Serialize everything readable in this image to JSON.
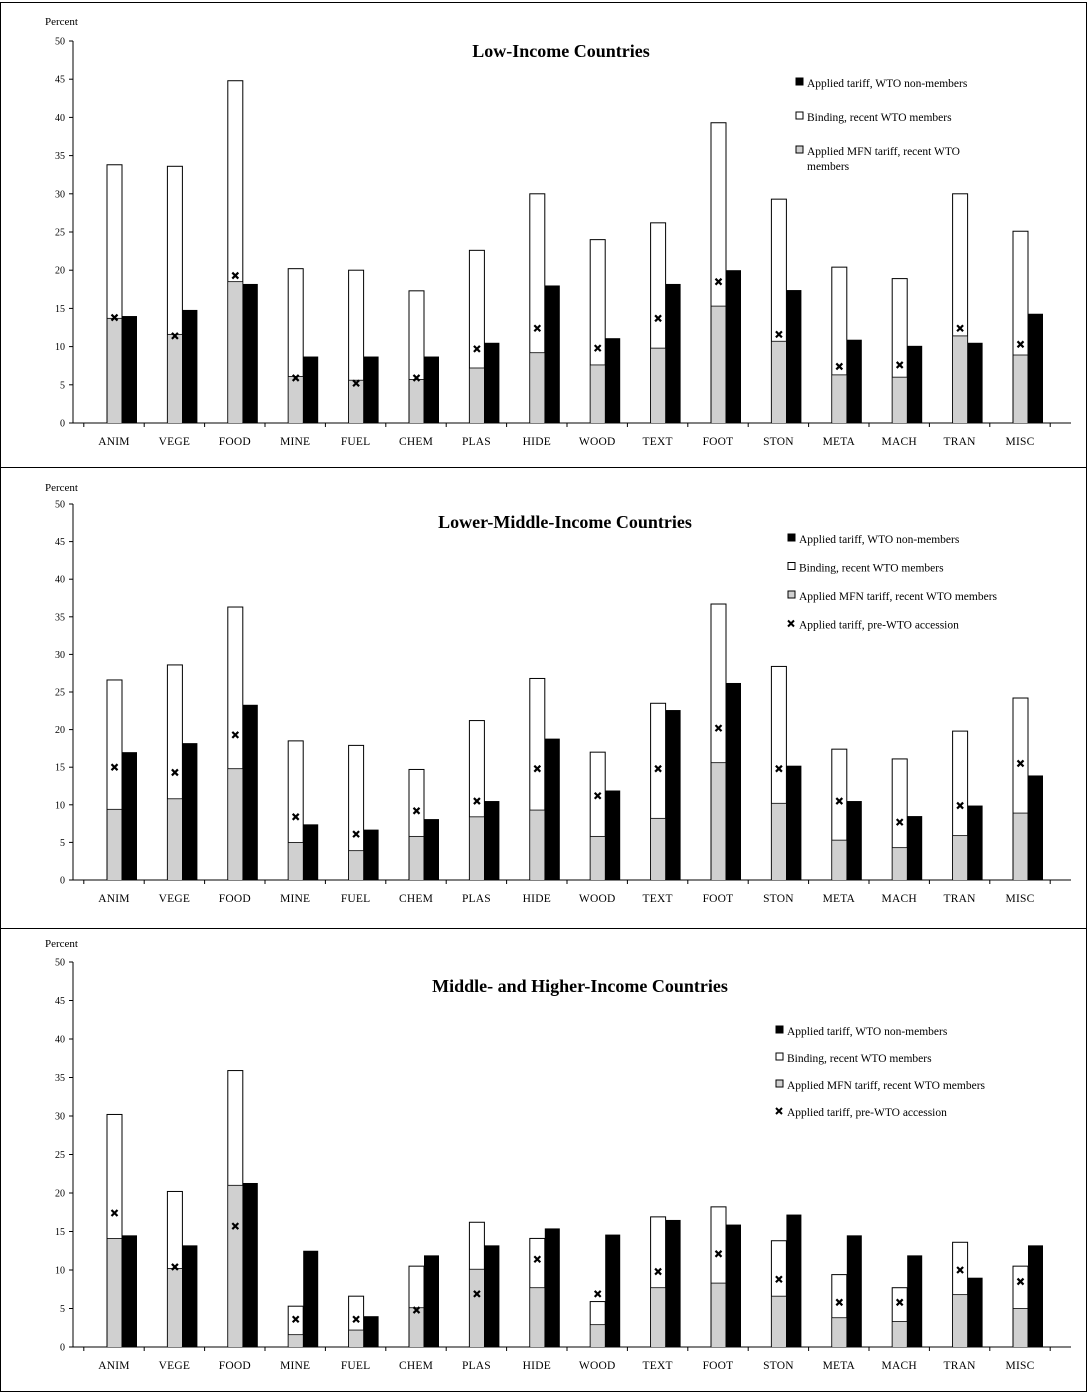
{
  "chart_data": [
    {
      "type": "bar",
      "title": "Low-Income Countries",
      "ylabel": "Percent",
      "xlabel": "",
      "ylim": [
        0,
        50
      ],
      "yticks": [
        0,
        5,
        10,
        15,
        20,
        25,
        30,
        35,
        40,
        45,
        50
      ],
      "categories": [
        "ANIM",
        "VEGE",
        "FOOD",
        "MINE",
        "FUEL",
        "CHEM",
        "PLAS",
        "HIDE",
        "WOOD",
        "TEXT",
        "FOOT",
        "STON",
        "META",
        "MACH",
        "TRAN",
        "MISC"
      ],
      "legend_position": "top-right",
      "legend": [
        {
          "label": "Applied tariff, WTO non-members",
          "marker": "solid-square",
          "color": "#000000"
        },
        {
          "label": "Binding, recent WTO members",
          "marker": "hollow-square",
          "color": "#ffffff"
        },
        {
          "label": "Applied MFN tariff, recent WTO members",
          "marker": "gray-square",
          "color": "#d0d0d0"
        }
      ],
      "series": [
        {
          "name": "Binding, recent WTO members",
          "values": [
            33.8,
            33.6,
            44.8,
            20.2,
            20.0,
            17.3,
            22.6,
            30.0,
            24.0,
            26.2,
            39.3,
            29.3,
            20.4,
            18.9,
            30.0,
            25.1
          ]
        },
        {
          "name": "Applied MFN tariff, recent WTO members",
          "values": [
            13.7,
            11.6,
            18.5,
            6.1,
            5.6,
            5.7,
            7.2,
            9.2,
            7.6,
            9.8,
            15.3,
            10.7,
            6.3,
            6.0,
            11.4,
            8.9
          ]
        },
        {
          "name": "Applied tariff, pre-WTO accession",
          "values": [
            13.8,
            11.4,
            19.3,
            5.9,
            5.2,
            5.9,
            9.7,
            12.4,
            9.8,
            13.7,
            18.5,
            11.6,
            7.4,
            7.6,
            12.4,
            10.3
          ]
        },
        {
          "name": "Applied tariff, WTO non-members",
          "values": [
            14.0,
            14.8,
            18.2,
            8.7,
            8.7,
            8.7,
            10.5,
            18.0,
            11.1,
            18.2,
            20.0,
            17.4,
            10.9,
            10.1,
            10.5,
            14.3
          ]
        }
      ]
    },
    {
      "type": "bar",
      "title": "Lower-Middle-Income Countries",
      "ylabel": "Percent",
      "xlabel": "",
      "ylim": [
        0,
        50
      ],
      "yticks": [
        0,
        5,
        10,
        15,
        20,
        25,
        30,
        35,
        40,
        45,
        50
      ],
      "categories": [
        "ANIM",
        "VEGE",
        "FOOD",
        "MINE",
        "FUEL",
        "CHEM",
        "PLAS",
        "HIDE",
        "WOOD",
        "TEXT",
        "FOOT",
        "STON",
        "META",
        "MACH",
        "TRAN",
        "MISC"
      ],
      "legend_position": "top-right",
      "legend": [
        {
          "label": "Applied tariff, WTO non-members",
          "marker": "solid-square",
          "color": "#000000"
        },
        {
          "label": "Binding, recent WTO members",
          "marker": "hollow-square",
          "color": "#ffffff"
        },
        {
          "label": "Applied MFN tariff, recent WTO members",
          "marker": "gray-square",
          "color": "#d0d0d0"
        },
        {
          "label": "Applied tariff, pre-WTO accession",
          "marker": "x-mark",
          "color": "#000000"
        }
      ],
      "series": [
        {
          "name": "Binding, recent WTO members",
          "values": [
            26.6,
            28.6,
            36.3,
            18.5,
            17.9,
            14.7,
            21.2,
            26.8,
            17.0,
            23.5,
            36.7,
            28.4,
            17.4,
            16.1,
            19.8,
            24.2
          ]
        },
        {
          "name": "Applied MFN tariff, recent WTO members",
          "values": [
            9.4,
            10.8,
            14.8,
            5.0,
            3.9,
            5.8,
            8.4,
            9.3,
            5.8,
            8.2,
            15.6,
            10.2,
            5.3,
            4.3,
            5.9,
            8.9
          ]
        },
        {
          "name": "Applied tariff, pre-WTO accession",
          "values": [
            15.0,
            14.3,
            19.3,
            8.4,
            6.1,
            9.2,
            10.5,
            14.8,
            11.2,
            14.8,
            20.2,
            14.8,
            10.5,
            7.7,
            9.9,
            15.5
          ]
        },
        {
          "name": "Applied tariff, WTO non-members",
          "values": [
            17.0,
            18.2,
            23.3,
            7.4,
            6.7,
            8.1,
            10.5,
            18.8,
            11.9,
            22.6,
            26.2,
            15.2,
            10.5,
            8.5,
            9.9,
            13.9
          ]
        }
      ]
    },
    {
      "type": "bar",
      "title": "Middle- and Higher-Income Countries",
      "ylabel": "Percent",
      "xlabel": "",
      "ylim": [
        0,
        50
      ],
      "yticks": [
        0,
        5,
        10,
        15,
        20,
        25,
        30,
        35,
        40,
        45,
        50
      ],
      "categories": [
        "ANIM",
        "VEGE",
        "FOOD",
        "MINE",
        "FUEL",
        "CHEM",
        "PLAS",
        "HIDE",
        "WOOD",
        "TEXT",
        "FOOT",
        "STON",
        "META",
        "MACH",
        "TRAN",
        "MISC"
      ],
      "legend_position": "top-right",
      "legend": [
        {
          "label": "Applied tariff, WTO non-members",
          "marker": "solid-square",
          "color": "#000000"
        },
        {
          "label": "Binding, recent WTO members",
          "marker": "hollow-square",
          "color": "#ffffff"
        },
        {
          "label": "Applied MFN tariff, recent WTO members",
          "marker": "gray-square",
          "color": "#d0d0d0"
        },
        {
          "label": "Applied tariff, pre-WTO accession",
          "marker": "x-mark",
          "color": "#000000"
        }
      ],
      "series": [
        {
          "name": "Binding, recent WTO members",
          "values": [
            30.2,
            20.2,
            35.9,
            5.3,
            6.6,
            10.5,
            16.2,
            14.1,
            5.9,
            16.9,
            18.2,
            13.8,
            9.4,
            7.7,
            13.6,
            10.5
          ]
        },
        {
          "name": "Applied MFN tariff, recent WTO members",
          "values": [
            14.1,
            10.2,
            21.0,
            1.6,
            2.2,
            5.1,
            10.1,
            7.7,
            2.9,
            7.7,
            8.3,
            6.6,
            3.8,
            3.3,
            6.8,
            5.0
          ]
        },
        {
          "name": "Applied tariff, pre-WTO accession",
          "values": [
            17.4,
            10.4,
            15.7,
            3.6,
            3.6,
            4.8,
            6.9,
            11.4,
            6.9,
            9.8,
            12.1,
            8.8,
            5.8,
            5.8,
            10.0,
            8.5
          ]
        },
        {
          "name": "Applied tariff, WTO non-members",
          "values": [
            14.5,
            13.2,
            21.3,
            12.5,
            4.0,
            11.9,
            13.2,
            15.4,
            14.6,
            16.5,
            15.9,
            17.2,
            14.5,
            11.9,
            9.0,
            13.2
          ]
        }
      ]
    }
  ]
}
